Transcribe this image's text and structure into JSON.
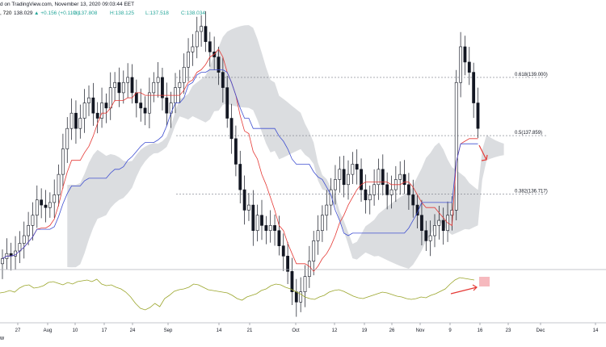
{
  "header": {
    "published": "d on TradingView.com, November 13, 2020 09:03:44 EET",
    "interval": ", 720",
    "last": "138.029",
    "change": "▲ +0.156 (+0.11%)",
    "open": "O:137.808",
    "high": "H:138.125",
    "low": "L:137.518",
    "close": "C:138.034"
  },
  "footer": {
    "logo_fragment": "w"
  },
  "colors": {
    "up": "#26a69a",
    "tenkan": "#e53935",
    "kijun": "#3f4fd1",
    "cloud": "#d7d9dd",
    "oscillator": "#9aa52a",
    "annotation": "#e53935"
  },
  "chart_data": {
    "type": "candlestick",
    "title": "",
    "price_range": [
      135.3,
      140.2
    ],
    "date_ticks": [
      "27",
      "Aug",
      "10",
      "17",
      "24",
      "Sep",
      "14",
      "21",
      "Oct",
      "12",
      "19",
      "26",
      "Nov",
      "9",
      "16",
      "23",
      "Dec",
      "14"
    ],
    "fibonacci": [
      {
        "label": "0.618(139.000)",
        "value": 139.0
      },
      {
        "label": "0.5(137.859)",
        "value": 137.859
      },
      {
        "label": "0.382(136.717)",
        "value": 136.717
      }
    ],
    "candles_close": [
      135.45,
      135.55,
      135.5,
      135.6,
      135.75,
      135.9,
      136.1,
      136.3,
      136.6,
      136.5,
      136.45,
      136.55,
      136.7,
      137.1,
      137.6,
      138.0,
      138.3,
      138.0,
      138.2,
      138.5,
      138.6,
      138.3,
      138.2,
      138.5,
      138.4,
      138.8,
      138.9,
      138.7,
      138.9,
      139.0,
      138.7,
      138.5,
      138.4,
      138.3,
      138.7,
      138.9,
      139.0,
      138.6,
      138.3,
      138.5,
      138.8,
      138.9,
      139.2,
      139.5,
      139.6,
      139.9,
      140.0,
      139.7,
      139.5,
      139.4,
      139.1,
      138.8,
      138.2,
      137.8,
      137.3,
      136.8,
      136.4,
      136.5,
      136.0,
      136.3,
      136.1,
      136.0,
      136.1,
      136.0,
      135.7,
      135.5,
      135.2,
      134.8,
      134.6,
      134.8,
      135.1,
      135.4,
      135.8,
      136.0,
      136.3,
      136.5,
      136.8,
      137.0,
      137.2,
      136.9,
      137.1,
      137.3,
      137.2,
      136.8,
      136.6,
      136.7,
      136.9,
      137.2,
      136.9,
      136.7,
      136.8,
      137.0,
      137.1,
      136.9,
      136.7,
      136.5,
      136.3,
      136.0,
      135.8,
      135.9,
      136.1,
      136.2,
      136.0,
      136.3,
      136.4,
      138.9,
      139.6,
      139.3,
      139.1,
      138.5,
      138.0
    ],
    "oscillator": [
      0.05,
      0.1,
      0.2,
      0.1,
      0.35,
      0.5,
      0.55,
      0.35,
      0.4,
      0.5,
      0.7,
      0.75,
      0.65,
      0.55,
      0.7,
      0.6,
      0.75,
      0.8,
      0.85,
      0.75,
      0.9,
      0.6,
      0.5,
      0.55,
      0.4,
      0.3,
      0.1,
      -0.2,
      -0.6,
      -0.9,
      -1.0,
      -0.85,
      -0.6,
      -0.8,
      -0.3,
      -0.1,
      0.15,
      0.25,
      0.3,
      0.4,
      0.6,
      0.55,
      0.4,
      0.25,
      0.2,
      0.15,
      0.1,
      0.05,
      -0.1,
      -0.3,
      -0.4,
      -0.2,
      -0.1,
      0.0,
      0.2,
      0.3,
      0.5,
      0.6,
      0.55,
      0.4,
      0.3,
      0.15,
      0.0,
      -0.2,
      -0.3,
      -0.35,
      -0.2,
      -0.1,
      0.1,
      0.2,
      0.25,
      0.15,
      0.0,
      -0.15,
      -0.25,
      -0.3,
      -0.2,
      -0.1,
      0.0,
      0.1,
      0.05,
      -0.05,
      -0.15,
      -0.2,
      -0.3,
      -0.35,
      -0.3,
      -0.2,
      -0.25,
      -0.1,
      0.0,
      0.15,
      0.3,
      0.6,
      0.85,
      1.0,
      0.95,
      0.9,
      0.85
    ],
    "annotations": [
      "down-arrow",
      "oscillator-arrow",
      "highlight-box"
    ]
  }
}
